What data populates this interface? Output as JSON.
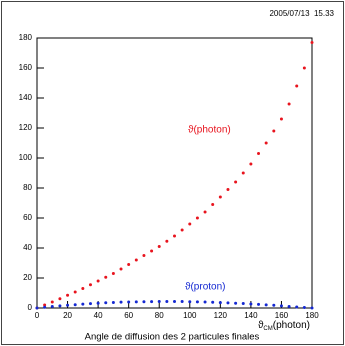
{
  "chart_data": {
    "type": "scatter",
    "timestamp": "2005/07/13  15.33",
    "title": "Angle de diffusion des 2 particules finales",
    "x_label_symbol": "ϑ",
    "x_label_subscript": "CM",
    "x_label_text": "(photon)",
    "x": [
      0,
      5,
      10,
      15,
      20,
      25,
      30,
      35,
      40,
      45,
      50,
      55,
      60,
      65,
      70,
      75,
      80,
      85,
      90,
      95,
      100,
      105,
      110,
      115,
      120,
      125,
      130,
      135,
      140,
      145,
      150,
      155,
      160,
      165,
      170,
      175,
      180
    ],
    "series": [
      {
        "name": "ϑ(photon)",
        "color": "#e8141e",
        "values": [
          0,
          2,
          4,
          6.2,
          8.5,
          10.7,
          13,
          15.5,
          18,
          20.5,
          23,
          26,
          29,
          32,
          35,
          38,
          41,
          44.5,
          48,
          52,
          56,
          60,
          64,
          69,
          74,
          79,
          84,
          90,
          96,
          103,
          110,
          118,
          126,
          136,
          148,
          160,
          177
        ]
      },
      {
        "name": "ϑ(proton)",
        "color": "#1428d2",
        "values": [
          0,
          0.5,
          1,
          1.4,
          1.8,
          2.2,
          2.6,
          2.9,
          3.2,
          3.5,
          3.7,
          3.9,
          4.0,
          4.1,
          4.2,
          4.25,
          4.3,
          4.3,
          4.3,
          4.3,
          4.2,
          4.1,
          4.0,
          3.8,
          3.6,
          3.4,
          3.2,
          3.0,
          2.7,
          2.4,
          2.1,
          1.8,
          1.4,
          1.0,
          0.7,
          0.3,
          0
        ]
      }
    ],
    "xlim": [
      0,
      180
    ],
    "xticks": [
      0,
      20,
      40,
      60,
      80,
      100,
      120,
      140,
      160,
      180
    ],
    "ylim": [
      0,
      180
    ],
    "yticks": [
      0,
      20,
      40,
      60,
      80,
      100,
      120,
      140,
      160,
      180
    ]
  }
}
